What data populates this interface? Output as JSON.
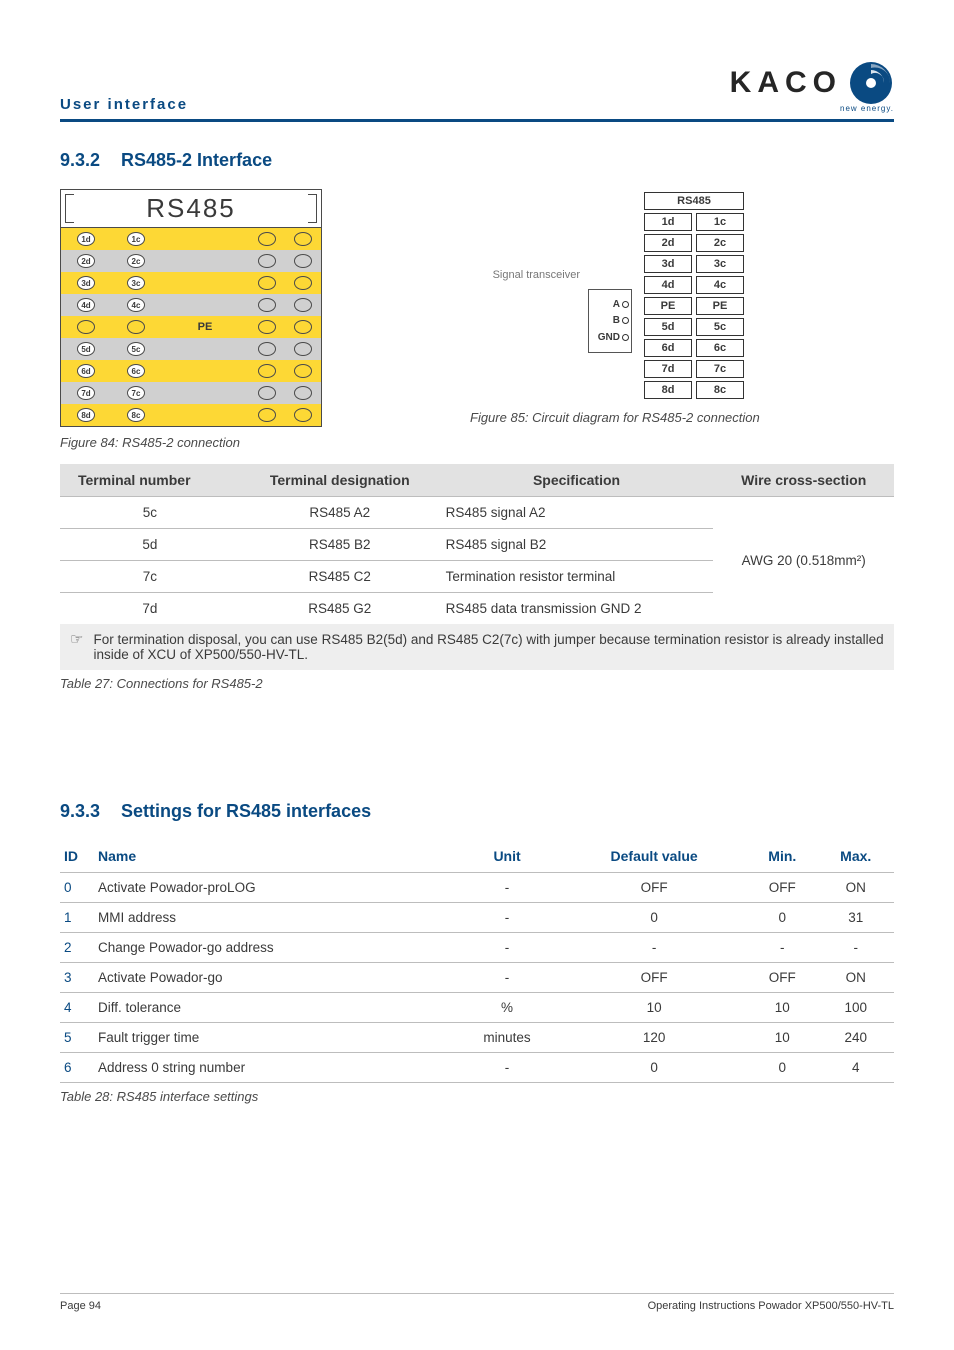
{
  "header": {
    "section_label": "User interface",
    "logo_text": "KACO",
    "logo_tagline": "new energy.",
    "logo_colors": {
      "outer": "#0a4a82",
      "mid": "#8aa7c2",
      "inner": "#d9e3ec"
    }
  },
  "section_932": {
    "number": "9.3.2",
    "title": "RS485-2 Interface"
  },
  "fig84": {
    "title": "RS485",
    "rows_top": [
      {
        "left": "1d",
        "right": "1c"
      },
      {
        "left": "2d",
        "right": "2c"
      },
      {
        "left": "3d",
        "right": "3c"
      },
      {
        "left": "4d",
        "right": "4c"
      }
    ],
    "pe_label": "PE",
    "rows_bottom": [
      {
        "left": "5d",
        "right": "5c"
      },
      {
        "left": "6d",
        "right": "6c"
      },
      {
        "left": "7d",
        "right": "7c"
      },
      {
        "left": "8d",
        "right": "8c"
      }
    ],
    "caption": "Figure 84:  RS485-2 connection",
    "colors": {
      "yellow": "#fdd835",
      "grey": "#d0d0d0",
      "line": "#4a4a4a"
    }
  },
  "fig85": {
    "sig_label": "Signal transceiver",
    "sig_pins": [
      "A",
      "B",
      "GND"
    ],
    "header": "RS485",
    "rows": [
      [
        "1d",
        "1c"
      ],
      [
        "2d",
        "2c"
      ],
      [
        "3d",
        "3c"
      ],
      [
        "4d",
        "4c"
      ],
      [
        "PE",
        "PE"
      ],
      [
        "5d",
        "5c"
      ],
      [
        "6d",
        "6c"
      ],
      [
        "7d",
        "7c"
      ],
      [
        "8d",
        "8c"
      ]
    ],
    "caption": "Figure 85:  Circuit diagram for RS485-2 connection"
  },
  "table27": {
    "headers": [
      "Terminal number",
      "Terminal designation",
      "Specification",
      "Wire cross-section"
    ],
    "rows": [
      {
        "num": "5c",
        "des": "RS485 A2",
        "spec": "RS485 signal A2"
      },
      {
        "num": "5d",
        "des": "RS485 B2",
        "spec": "RS485 signal B2"
      },
      {
        "num": "7c",
        "des": "RS485 C2",
        "spec": "Termination resistor terminal"
      },
      {
        "num": "7d",
        "des": "RS485 G2",
        "spec": "RS485 data transmission GND 2"
      }
    ],
    "wire": "AWG 20 (0.518mm²)",
    "note": "For termination disposal, you can use RS485 B2(5d) and RS485 C2(7c) with jumper because termination resistor is already installed inside of XCU of XP500/550-HV-TL.",
    "caption": "Table 27:  Connections for RS485-2"
  },
  "section_933": {
    "number": "9.3.3",
    "title": "Settings for RS485 interfaces"
  },
  "table28": {
    "headers": [
      "ID",
      "Name",
      "Unit",
      "Default value",
      "Min.",
      "Max."
    ],
    "rows": [
      {
        "id": "0",
        "name": "Activate Powador-proLOG",
        "unit": "-",
        "def": "OFF",
        "min": "OFF",
        "max": "ON"
      },
      {
        "id": "1",
        "name": "MMI address",
        "unit": "-",
        "def": "0",
        "min": "0",
        "max": "31"
      },
      {
        "id": "2",
        "name": "Change Powador-go address",
        "unit": "-",
        "def": "-",
        "min": "-",
        "max": "-"
      },
      {
        "id": "3",
        "name": "Activate Powador-go",
        "unit": "-",
        "def": "OFF",
        "min": "OFF",
        "max": "ON"
      },
      {
        "id": "4",
        "name": "Diff. tolerance",
        "unit": "%",
        "def": "10",
        "min": "10",
        "max": "100"
      },
      {
        "id": "5",
        "name": "Fault trigger time",
        "unit": "minutes",
        "def": "120",
        "min": "10",
        "max": "240"
      },
      {
        "id": "6",
        "name": "Address 0 string number",
        "unit": "-",
        "def": "0",
        "min": "0",
        "max": "4"
      }
    ],
    "caption": "Table 28:  RS485 interface settings"
  },
  "footer": {
    "page": "Page 94",
    "doc": "Operating Instructions Powador XP500/550-HV-TL"
  }
}
